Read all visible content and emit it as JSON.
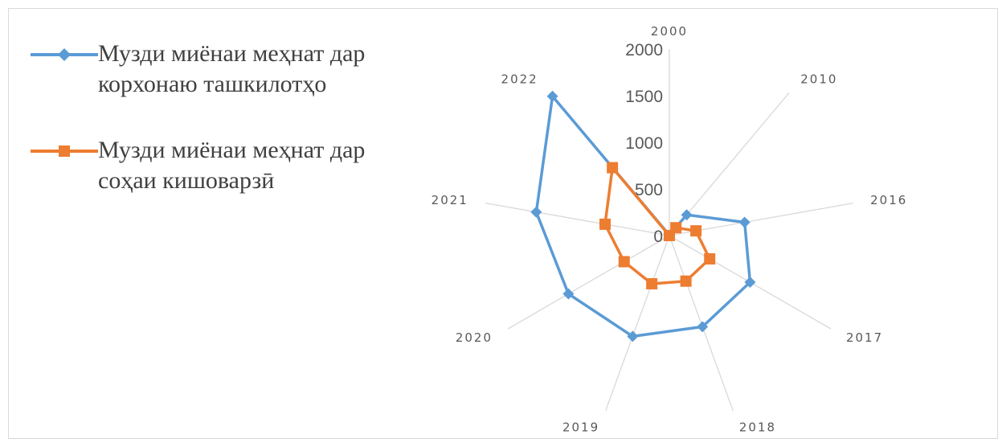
{
  "chart_data": {
    "type": "radar",
    "categories": [
      "2000",
      "2010",
      "2016",
      "2017",
      "2018",
      "2019",
      "2020",
      "2021",
      "2022"
    ],
    "series": [
      {
        "name": "Музди миёнаи меҳнат дар корхонаю ташкилотҳо",
        "color": "#5b9bd5",
        "marker": "diamond",
        "values": [
          5,
          290,
          820,
          1000,
          1040,
          1150,
          1250,
          1450,
          1950
        ]
      },
      {
        "name": "Музди миёнаи меҳнат дар соҳаи кишоварзӣ",
        "color": "#ed7d31",
        "marker": "square",
        "values": [
          0,
          110,
          290,
          500,
          520,
          550,
          560,
          700,
          950
        ]
      }
    ],
    "radial_ticks": [
      "0",
      "500",
      "1000",
      "1500",
      "2000"
    ],
    "rlim": [
      0,
      2000
    ],
    "grid": "spokes-only",
    "legend_position": "left"
  }
}
